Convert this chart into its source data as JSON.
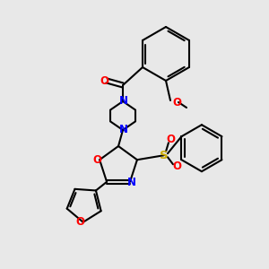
{
  "bg_color": "#e8e8e8",
  "bond_color": "#000000",
  "bond_lw": 1.5,
  "atom_colors": {
    "N": "#0000ff",
    "O": "#ff0000",
    "S": "#ccaa00",
    "C": "#000000"
  },
  "font_size": 7.5
}
